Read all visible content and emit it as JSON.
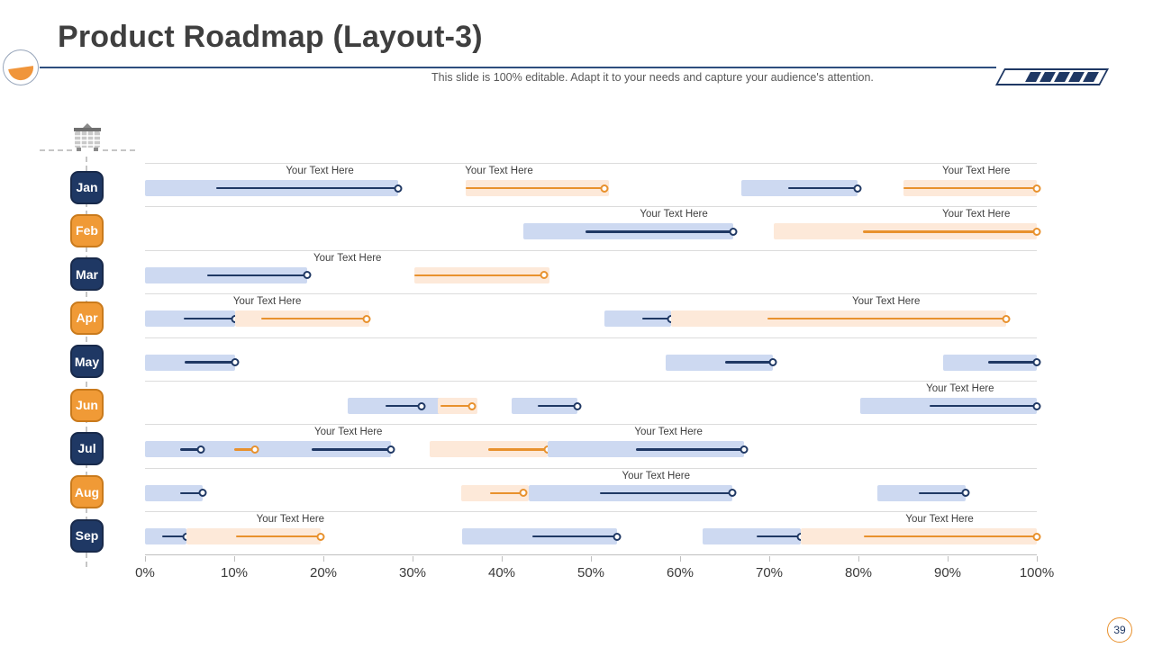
{
  "slide": {
    "title": "Product Roadmap (Layout-3)",
    "subtitle": "This slide is 100% editable. Adapt it to your needs and capture your audience's attention.",
    "page_number": "39"
  },
  "colors": {
    "navy": "#1F3864",
    "orange": "#E8912D",
    "bar_blue_fill": "#CDD9F1",
    "bar_orange_fill": "#FDE9D9",
    "badge_orange": "#F09A36",
    "separator": "#DCDCDC",
    "text_dark": "#3F3F3F",
    "text_gray": "#595959"
  },
  "decorations": {
    "stripe_count": 5
  },
  "axis": {
    "min": 0,
    "max": 100,
    "tick_labels": [
      "0%",
      "10%",
      "20%",
      "30%",
      "40%",
      "50%",
      "60%",
      "70%",
      "80%",
      "90%",
      "100%"
    ]
  },
  "chart_data": {
    "type": "gantt",
    "unit": "percent",
    "xlabel": "",
    "xlim": [
      0,
      100
    ],
    "grid": "horizontal-separators-only",
    "rows": [
      {
        "month": "Jan",
        "badge": "navy",
        "bars": [
          {
            "fill": "blue",
            "start": 0,
            "end": 28.4,
            "lines": [
              {
                "color": "navy",
                "start": 8,
                "end": 28.4
              }
            ],
            "label": {
              "text": "Your Text Here",
              "x": 19.6
            }
          },
          {
            "fill": "orange",
            "start": 36,
            "end": 52,
            "lines": [
              {
                "color": "orange",
                "start": 36,
                "end": 51.5
              }
            ],
            "label": {
              "text": "Your Text Here",
              "x": 39.7
            }
          },
          {
            "fill": "blue",
            "start": 66.9,
            "end": 79.9,
            "lines": [
              {
                "color": "navy",
                "start": 72.1,
                "end": 79.9
              }
            ]
          },
          {
            "fill": "orange",
            "start": 85,
            "end": 100,
            "lines": [
              {
                "color": "orange",
                "start": 85,
                "end": 100
              }
            ],
            "label": {
              "text": "Your Text Here",
              "x": 93.2
            }
          }
        ]
      },
      {
        "month": "Feb",
        "badge": "orange",
        "bars": [
          {
            "fill": "blue",
            "start": 42.4,
            "end": 66,
            "lines": [
              {
                "color": "navy",
                "start": 49.4,
                "end": 66
              }
            ],
            "label": {
              "text": "Your Text Here",
              "x": 59.3
            }
          },
          {
            "fill": "orange",
            "start": 70.5,
            "end": 100,
            "lines": [
              {
                "color": "orange",
                "start": 80.5,
                "end": 100
              }
            ],
            "label": {
              "text": "Your Text Here",
              "x": 93.2
            }
          }
        ]
      },
      {
        "month": "Mar",
        "badge": "navy",
        "bars": [
          {
            "fill": "blue",
            "start": 0,
            "end": 18.2,
            "lines": [
              {
                "color": "navy",
                "start": 7,
                "end": 18.2
              }
            ],
            "label": {
              "text": "Your Text Here",
              "x": 22.7
            }
          },
          {
            "fill": "orange",
            "start": 30.2,
            "end": 45.4,
            "lines": [
              {
                "color": "orange",
                "start": 30.2,
                "end": 44.7
              }
            ]
          }
        ]
      },
      {
        "month": "Apr",
        "badge": "orange",
        "bars": [
          {
            "fill": "blue",
            "start": 0,
            "end": 10.1,
            "lines": [
              {
                "color": "navy",
                "start": 4.3,
                "end": 10.1
              }
            ],
            "label": {
              "text": "Your Text Here",
              "x": 13.7
            }
          },
          {
            "fill": "orange",
            "start": 10.1,
            "end": 25.2,
            "lines": [
              {
                "color": "orange",
                "start": 13,
                "end": 24.8
              }
            ]
          },
          {
            "fill": "blue",
            "start": 51.5,
            "end": 59,
            "lines": [
              {
                "color": "navy",
                "start": 55.8,
                "end": 59
              }
            ]
          },
          {
            "fill": "orange",
            "start": 59,
            "end": 96.6,
            "lines": [
              {
                "color": "orange",
                "start": 69.8,
                "end": 96.6
              }
            ],
            "label": {
              "text": "Your Text Here",
              "x": 83.1
            }
          }
        ]
      },
      {
        "month": "May",
        "badge": "navy",
        "bars": [
          {
            "fill": "blue",
            "start": 0,
            "end": 10.1,
            "lines": [
              {
                "color": "navy",
                "start": 4.4,
                "end": 10.1
              }
            ]
          },
          {
            "fill": "blue",
            "start": 58.4,
            "end": 70.4,
            "lines": [
              {
                "color": "navy",
                "start": 65,
                "end": 70.4
              }
            ]
          },
          {
            "fill": "blue",
            "start": 89.5,
            "end": 100,
            "lines": [
              {
                "color": "navy",
                "start": 94.5,
                "end": 100
              }
            ]
          }
        ]
      },
      {
        "month": "Jun",
        "badge": "orange",
        "bars": [
          {
            "fill": "blue",
            "start": 22.7,
            "end": 33.9,
            "lines": [
              {
                "color": "navy",
                "start": 27,
                "end": 31
              }
            ]
          },
          {
            "fill": "orange",
            "start": 32.8,
            "end": 37.3,
            "lines": [
              {
                "color": "orange",
                "start": 33.1,
                "end": 36.7
              }
            ]
          },
          {
            "fill": "blue",
            "start": 41.1,
            "end": 48.5,
            "lines": [
              {
                "color": "navy",
                "start": 44,
                "end": 48.5
              }
            ]
          },
          {
            "fill": "blue",
            "start": 80.2,
            "end": 100,
            "lines": [
              {
                "color": "navy",
                "start": 88,
                "end": 100
              }
            ],
            "label": {
              "text": "Your Text Here",
              "x": 91.4
            }
          }
        ]
      },
      {
        "month": "Jul",
        "badge": "navy",
        "bars": [
          {
            "fill": "blue",
            "start": 0,
            "end": 27.6,
            "lines": [
              {
                "color": "navy",
                "start": 3.9,
                "end": 6.3
              },
              {
                "color": "orange",
                "start": 10,
                "end": 12.3
              },
              {
                "color": "navy",
                "start": 18.7,
                "end": 27.6
              }
            ],
            "label": {
              "text": "Your Text Here",
              "x": 22.8
            }
          },
          {
            "fill": "orange",
            "start": 31.9,
            "end": 45.2,
            "lines": [
              {
                "color": "orange",
                "start": 38.5,
                "end": 45.2
              }
            ]
          },
          {
            "fill": "blue",
            "start": 45.2,
            "end": 67.2,
            "lines": [
              {
                "color": "navy",
                "start": 55,
                "end": 67.2
              }
            ],
            "label": {
              "text": "Your Text Here",
              "x": 58.7
            }
          }
        ]
      },
      {
        "month": "Aug",
        "badge": "orange",
        "bars": [
          {
            "fill": "blue",
            "start": 0,
            "end": 6.5,
            "lines": [
              {
                "color": "navy",
                "start": 3.9,
                "end": 6.5
              }
            ]
          },
          {
            "fill": "orange",
            "start": 35.5,
            "end": 43,
            "lines": [
              {
                "color": "orange",
                "start": 38.7,
                "end": 42.4
              }
            ]
          },
          {
            "fill": "blue",
            "start": 43,
            "end": 65.9,
            "lines": [
              {
                "color": "navy",
                "start": 51,
                "end": 65.9
              }
            ],
            "label": {
              "text": "Your Text Here",
              "x": 57.3
            }
          },
          {
            "fill": "blue",
            "start": 82.1,
            "end": 92,
            "lines": [
              {
                "color": "navy",
                "start": 86.8,
                "end": 92
              }
            ]
          }
        ]
      },
      {
        "month": "Sep",
        "badge": "navy",
        "bars": [
          {
            "fill": "blue",
            "start": 0,
            "end": 4.6,
            "lines": [
              {
                "color": "navy",
                "start": 1.9,
                "end": 4.6
              }
            ]
          },
          {
            "fill": "orange",
            "start": 4.6,
            "end": 19.7,
            "lines": [
              {
                "color": "orange",
                "start": 10.2,
                "end": 19.7
              }
            ],
            "label": {
              "text": "Your Text Here",
              "x": 16.3
            }
          },
          {
            "fill": "blue",
            "start": 35.6,
            "end": 52.9,
            "lines": [
              {
                "color": "navy",
                "start": 43.4,
                "end": 52.9
              }
            ]
          },
          {
            "fill": "blue",
            "start": 62.5,
            "end": 73.5,
            "lines": [
              {
                "color": "navy",
                "start": 68.6,
                "end": 73.5
              }
            ]
          },
          {
            "fill": "orange",
            "start": 73.5,
            "end": 100,
            "lines": [
              {
                "color": "orange",
                "start": 80.6,
                "end": 100
              }
            ],
            "label": {
              "text": "Your Text Here",
              "x": 89.1
            }
          }
        ]
      }
    ]
  }
}
